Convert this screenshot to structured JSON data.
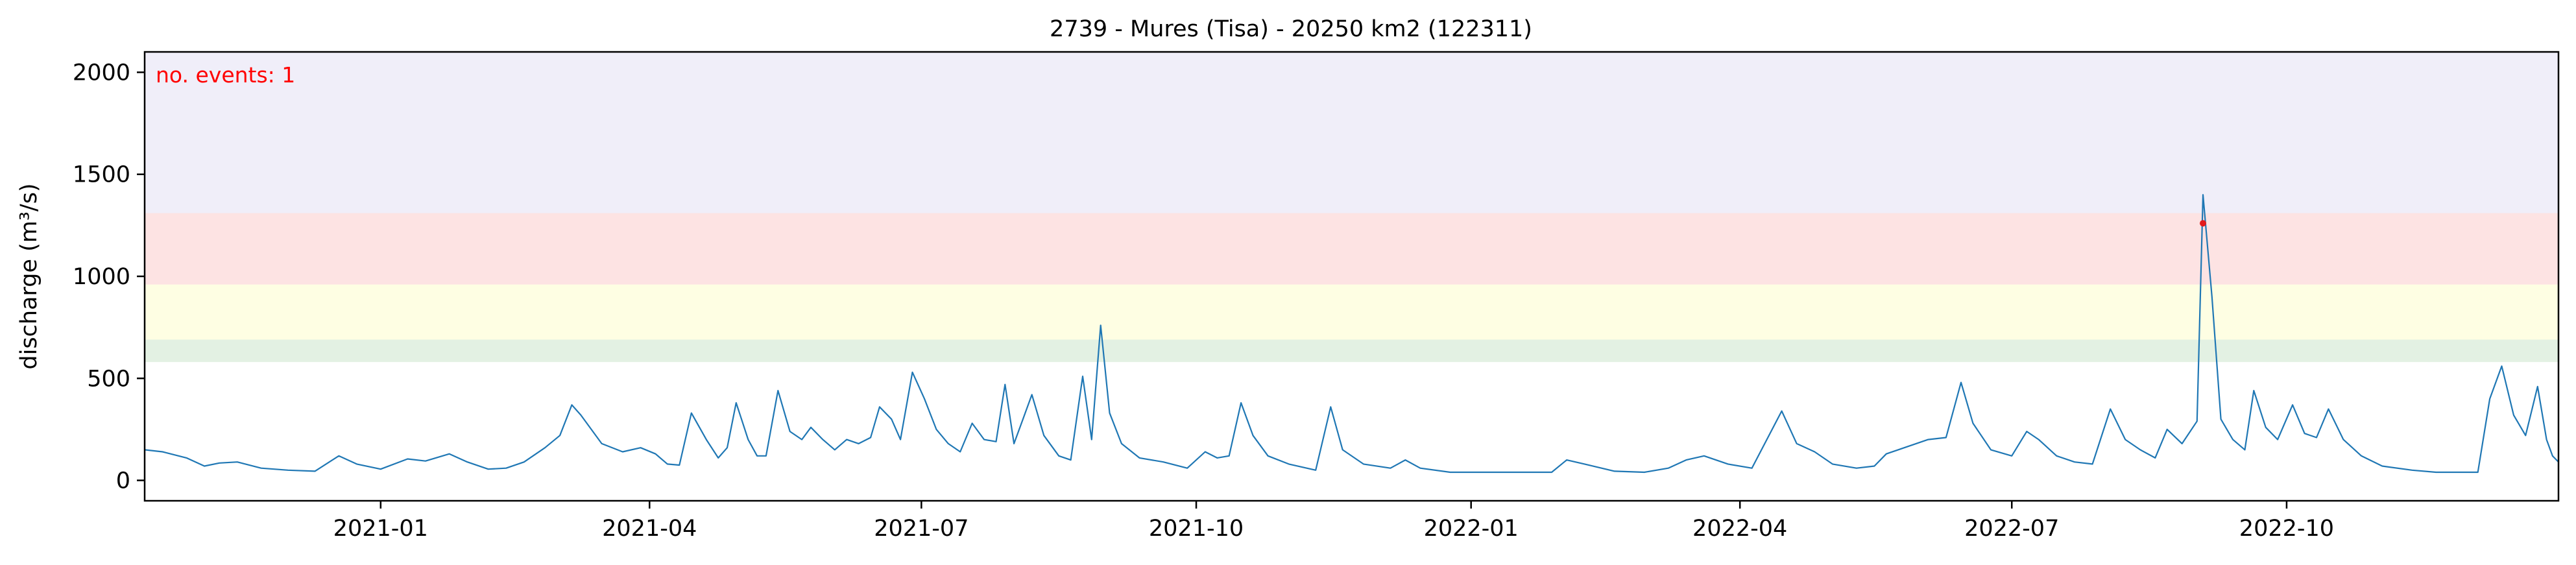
{
  "chart_data": {
    "type": "line",
    "title": "2739 - Mures (Tisa) - 20250 km2 (122311)",
    "xlabel": "",
    "ylabel": "discharge (m³/s)",
    "annotation": "no. events: 1",
    "xlim": [
      "2020-10-14",
      "2022-12-31"
    ],
    "ylim": [
      -100,
      2100
    ],
    "x_ticks": [
      "2021-01",
      "2021-04",
      "2021-07",
      "2021-10",
      "2022-01",
      "2022-04",
      "2022-07",
      "2022-10"
    ],
    "x_tick_dates": [
      "2021-01-01",
      "2021-04-01",
      "2021-07-01",
      "2021-10-01",
      "2022-01-01",
      "2022-04-01",
      "2022-07-01",
      "2022-10-01"
    ],
    "y_ticks": [
      0,
      500,
      1000,
      1500,
      2000
    ],
    "grid": false,
    "threshold_bands": [
      {
        "from": 580,
        "to": 690,
        "color": "#e3f1e3"
      },
      {
        "from": 690,
        "to": 960,
        "color": "#fefee3"
      },
      {
        "from": 960,
        "to": 1310,
        "color": "#fde3e3"
      },
      {
        "from": 1310,
        "to": 2100,
        "color": "#f0eef9"
      }
    ],
    "series": [
      {
        "color": "#1f77b4",
        "points": [
          [
            "2020-10-14",
            150
          ],
          [
            "2020-10-20",
            140
          ],
          [
            "2020-10-28",
            110
          ],
          [
            "2020-11-03",
            70
          ],
          [
            "2020-11-08",
            85
          ],
          [
            "2020-11-14",
            90
          ],
          [
            "2020-11-22",
            60
          ],
          [
            "2020-12-01",
            50
          ],
          [
            "2020-12-10",
            45
          ],
          [
            "2020-12-18",
            120
          ],
          [
            "2020-12-24",
            80
          ],
          [
            "2021-01-01",
            55
          ],
          [
            "2021-01-10",
            105
          ],
          [
            "2021-01-16",
            95
          ],
          [
            "2021-01-24",
            130
          ],
          [
            "2021-01-30",
            90
          ],
          [
            "2021-02-06",
            55
          ],
          [
            "2021-02-12",
            60
          ],
          [
            "2021-02-18",
            90
          ],
          [
            "2021-02-25",
            160
          ],
          [
            "2021-03-02",
            220
          ],
          [
            "2021-03-06",
            370
          ],
          [
            "2021-03-09",
            320
          ],
          [
            "2021-03-16",
            180
          ],
          [
            "2021-03-23",
            140
          ],
          [
            "2021-03-29",
            160
          ],
          [
            "2021-04-03",
            130
          ],
          [
            "2021-04-07",
            80
          ],
          [
            "2021-04-11",
            75
          ],
          [
            "2021-04-15",
            330
          ],
          [
            "2021-04-20",
            200
          ],
          [
            "2021-04-24",
            110
          ],
          [
            "2021-04-27",
            160
          ],
          [
            "2021-04-30",
            380
          ],
          [
            "2021-05-04",
            200
          ],
          [
            "2021-05-07",
            120
          ],
          [
            "2021-05-10",
            120
          ],
          [
            "2021-05-14",
            440
          ],
          [
            "2021-05-18",
            240
          ],
          [
            "2021-05-22",
            200
          ],
          [
            "2021-05-25",
            260
          ],
          [
            "2021-05-29",
            200
          ],
          [
            "2021-06-02",
            150
          ],
          [
            "2021-06-06",
            200
          ],
          [
            "2021-06-10",
            180
          ],
          [
            "2021-06-14",
            210
          ],
          [
            "2021-06-17",
            360
          ],
          [
            "2021-06-21",
            300
          ],
          [
            "2021-06-24",
            200
          ],
          [
            "2021-06-28",
            530
          ],
          [
            "2021-07-02",
            400
          ],
          [
            "2021-07-06",
            250
          ],
          [
            "2021-07-10",
            180
          ],
          [
            "2021-07-14",
            140
          ],
          [
            "2021-07-18",
            280
          ],
          [
            "2021-07-22",
            200
          ],
          [
            "2021-07-26",
            190
          ],
          [
            "2021-07-29",
            470
          ],
          [
            "2021-08-01",
            180
          ],
          [
            "2021-08-04",
            300
          ],
          [
            "2021-08-07",
            420
          ],
          [
            "2021-08-11",
            220
          ],
          [
            "2021-08-16",
            120
          ],
          [
            "2021-08-20",
            100
          ],
          [
            "2021-08-24",
            510
          ],
          [
            "2021-08-27",
            200
          ],
          [
            "2021-08-30",
            760
          ],
          [
            "2021-09-02",
            330
          ],
          [
            "2021-09-06",
            180
          ],
          [
            "2021-09-12",
            110
          ],
          [
            "2021-09-20",
            90
          ],
          [
            "2021-09-28",
            60
          ],
          [
            "2021-10-04",
            140
          ],
          [
            "2021-10-08",
            110
          ],
          [
            "2021-10-12",
            120
          ],
          [
            "2021-10-16",
            380
          ],
          [
            "2021-10-20",
            220
          ],
          [
            "2021-10-25",
            120
          ],
          [
            "2021-11-01",
            80
          ],
          [
            "2021-11-10",
            50
          ],
          [
            "2021-11-15",
            360
          ],
          [
            "2021-11-19",
            150
          ],
          [
            "2021-11-26",
            80
          ],
          [
            "2021-12-05",
            60
          ],
          [
            "2021-12-10",
            100
          ],
          [
            "2021-12-15",
            60
          ],
          [
            "2021-12-25",
            40
          ],
          [
            "2022-01-05",
            40
          ],
          [
            "2022-01-15",
            40
          ],
          [
            "2022-01-28",
            40
          ],
          [
            "2022-02-02",
            100
          ],
          [
            "2022-02-08",
            80
          ],
          [
            "2022-02-18",
            45
          ],
          [
            "2022-02-28",
            40
          ],
          [
            "2022-03-08",
            60
          ],
          [
            "2022-03-14",
            100
          ],
          [
            "2022-03-20",
            120
          ],
          [
            "2022-03-28",
            80
          ],
          [
            "2022-04-05",
            60
          ],
          [
            "2022-04-15",
            340
          ],
          [
            "2022-04-20",
            180
          ],
          [
            "2022-04-26",
            140
          ],
          [
            "2022-05-02",
            80
          ],
          [
            "2022-05-10",
            60
          ],
          [
            "2022-05-16",
            70
          ],
          [
            "2022-05-20",
            130
          ],
          [
            "2022-05-26",
            160
          ],
          [
            "2022-06-03",
            200
          ],
          [
            "2022-06-09",
            210
          ],
          [
            "2022-06-14",
            480
          ],
          [
            "2022-06-18",
            280
          ],
          [
            "2022-06-24",
            150
          ],
          [
            "2022-07-01",
            120
          ],
          [
            "2022-07-06",
            240
          ],
          [
            "2022-07-10",
            200
          ],
          [
            "2022-07-16",
            120
          ],
          [
            "2022-07-22",
            90
          ],
          [
            "2022-07-28",
            80
          ],
          [
            "2022-08-03",
            350
          ],
          [
            "2022-08-08",
            200
          ],
          [
            "2022-08-13",
            150
          ],
          [
            "2022-08-18",
            110
          ],
          [
            "2022-08-22",
            250
          ],
          [
            "2022-08-27",
            180
          ],
          [
            "2022-09-01",
            290
          ],
          [
            "2022-09-03",
            1400
          ],
          [
            "2022-09-06",
            900
          ],
          [
            "2022-09-09",
            300
          ],
          [
            "2022-09-13",
            200
          ],
          [
            "2022-09-17",
            150
          ],
          [
            "2022-09-20",
            440
          ],
          [
            "2022-09-24",
            260
          ],
          [
            "2022-09-28",
            200
          ],
          [
            "2022-10-03",
            370
          ],
          [
            "2022-10-07",
            230
          ],
          [
            "2022-10-11",
            210
          ],
          [
            "2022-10-15",
            350
          ],
          [
            "2022-10-20",
            200
          ],
          [
            "2022-10-26",
            120
          ],
          [
            "2022-11-02",
            70
          ],
          [
            "2022-11-12",
            50
          ],
          [
            "2022-11-20",
            40
          ],
          [
            "2022-11-28",
            40
          ],
          [
            "2022-12-04",
            40
          ],
          [
            "2022-12-08",
            400
          ],
          [
            "2022-12-12",
            560
          ],
          [
            "2022-12-16",
            320
          ],
          [
            "2022-12-20",
            220
          ],
          [
            "2022-12-24",
            460
          ],
          [
            "2022-12-27",
            200
          ],
          [
            "2022-12-29",
            120
          ],
          [
            "2022-12-31",
            90
          ]
        ]
      }
    ],
    "event_markers": [
      {
        "x": "2022-09-03",
        "y": 1260,
        "color": "#e31a1c"
      }
    ]
  }
}
